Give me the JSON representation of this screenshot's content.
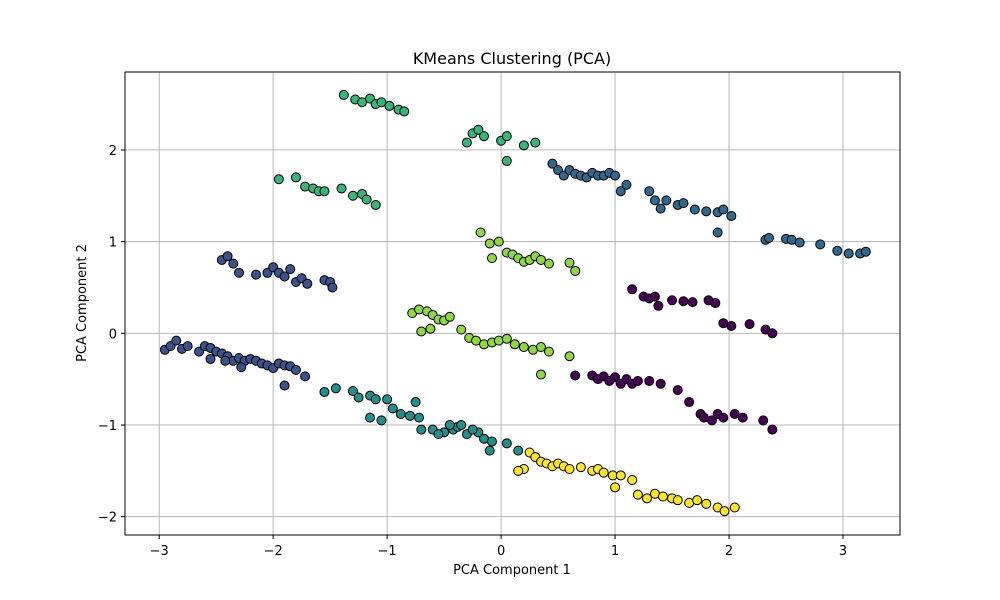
{
  "chart_data": {
    "type": "scatter",
    "title": "KMeans Clustering (PCA)",
    "xlabel": "PCA Component 1",
    "ylabel": "PCA Component 2",
    "xlim": [
      -3.3,
      3.5
    ],
    "ylim": [
      -2.2,
      2.85
    ],
    "xticks": [
      -3,
      -2,
      -1,
      0,
      1,
      2,
      3
    ],
    "yticks": [
      -2,
      -1,
      0,
      1,
      2
    ],
    "xtick_labels": [
      "−3",
      "−2",
      "−1",
      "0",
      "1",
      "2",
      "3"
    ],
    "ytick_labels": [
      "−2",
      "−1",
      "0",
      "1",
      "2"
    ],
    "grid": true,
    "series": [
      {
        "cluster": 0,
        "color": "#440154",
        "points": [
          [
            1.15,
            0.48
          ],
          [
            1.25,
            0.4
          ],
          [
            1.3,
            0.38
          ],
          [
            1.35,
            0.4
          ],
          [
            1.38,
            0.3
          ],
          [
            1.5,
            0.36
          ],
          [
            1.6,
            0.35
          ],
          [
            1.68,
            0.34
          ],
          [
            1.82,
            0.36
          ],
          [
            1.88,
            0.33
          ],
          [
            1.95,
            0.11
          ],
          [
            2.02,
            0.08
          ],
          [
            2.18,
            0.1
          ],
          [
            2.32,
            0.04
          ],
          [
            2.38,
            0.0
          ],
          [
            0.65,
            -0.46
          ],
          [
            0.8,
            -0.46
          ],
          [
            0.85,
            -0.5
          ],
          [
            0.9,
            -0.47
          ],
          [
            0.95,
            -0.52
          ],
          [
            1.0,
            -0.48
          ],
          [
            1.05,
            -0.55
          ],
          [
            1.1,
            -0.5
          ],
          [
            1.15,
            -0.55
          ],
          [
            1.2,
            -0.52
          ],
          [
            1.3,
            -0.52
          ],
          [
            1.4,
            -0.55
          ],
          [
            1.55,
            -0.62
          ],
          [
            1.65,
            -0.75
          ],
          [
            1.75,
            -0.88
          ],
          [
            1.78,
            -0.92
          ],
          [
            1.85,
            -0.95
          ],
          [
            1.9,
            -0.88
          ],
          [
            1.95,
            -0.92
          ],
          [
            2.05,
            -0.88
          ],
          [
            2.12,
            -0.92
          ],
          [
            2.3,
            -0.95
          ],
          [
            2.38,
            -1.05
          ]
        ]
      },
      {
        "cluster": 1,
        "color": "#3b528b",
        "points": [
          [
            -2.95,
            -0.18
          ],
          [
            -2.9,
            -0.14
          ],
          [
            -2.85,
            -0.08
          ],
          [
            -2.8,
            -0.17
          ],
          [
            -2.75,
            -0.14
          ],
          [
            -2.65,
            -0.2
          ],
          [
            -2.6,
            -0.14
          ],
          [
            -2.55,
            -0.16
          ],
          [
            -2.5,
            -0.2
          ],
          [
            -2.45,
            -0.22
          ],
          [
            -2.4,
            -0.25
          ],
          [
            -2.35,
            -0.3
          ],
          [
            -2.3,
            -0.27
          ],
          [
            -2.25,
            -0.3
          ],
          [
            -2.2,
            -0.28
          ],
          [
            -2.15,
            -0.3
          ],
          [
            -2.1,
            -0.33
          ],
          [
            -2.05,
            -0.35
          ],
          [
            -2.0,
            -0.38
          ],
          [
            -1.95,
            -0.33
          ],
          [
            -1.9,
            -0.35
          ],
          [
            -1.85,
            -0.36
          ],
          [
            -1.8,
            -0.4
          ],
          [
            -1.72,
            -0.47
          ],
          [
            -1.9,
            -0.57
          ],
          [
            -2.28,
            -0.37
          ],
          [
            -2.42,
            -0.3
          ],
          [
            -2.55,
            -0.28
          ],
          [
            -2.45,
            0.8
          ],
          [
            -2.4,
            0.84
          ],
          [
            -2.35,
            0.76
          ],
          [
            -2.3,
            0.66
          ],
          [
            -2.15,
            0.64
          ],
          [
            -2.05,
            0.66
          ],
          [
            -2.0,
            0.72
          ],
          [
            -1.95,
            0.66
          ],
          [
            -1.9,
            0.62
          ],
          [
            -1.85,
            0.7
          ],
          [
            -1.8,
            0.56
          ],
          [
            -1.75,
            0.6
          ],
          [
            -1.7,
            0.54
          ],
          [
            -1.55,
            0.58
          ],
          [
            -1.5,
            0.56
          ],
          [
            -1.48,
            0.5
          ]
        ]
      },
      {
        "cluster": 2,
        "color": "#31688e",
        "points": [
          [
            0.45,
            1.85
          ],
          [
            0.5,
            1.78
          ],
          [
            0.55,
            1.72
          ],
          [
            0.6,
            1.78
          ],
          [
            0.65,
            1.74
          ],
          [
            0.7,
            1.72
          ],
          [
            0.75,
            1.7
          ],
          [
            0.8,
            1.75
          ],
          [
            0.85,
            1.72
          ],
          [
            0.9,
            1.72
          ],
          [
            0.95,
            1.75
          ],
          [
            1.0,
            1.72
          ],
          [
            1.05,
            1.55
          ],
          [
            1.1,
            1.62
          ],
          [
            1.3,
            1.55
          ],
          [
            1.35,
            1.45
          ],
          [
            1.4,
            1.36
          ],
          [
            1.45,
            1.45
          ],
          [
            1.55,
            1.4
          ],
          [
            1.6,
            1.42
          ],
          [
            1.7,
            1.35
          ],
          [
            1.8,
            1.33
          ],
          [
            1.9,
            1.32
          ],
          [
            1.95,
            1.35
          ],
          [
            2.02,
            1.28
          ],
          [
            1.9,
            1.1
          ],
          [
            2.32,
            1.02
          ],
          [
            2.35,
            1.04
          ],
          [
            2.5,
            1.03
          ],
          [
            2.55,
            1.02
          ],
          [
            2.62,
            0.99
          ],
          [
            2.8,
            0.97
          ],
          [
            2.95,
            0.9
          ],
          [
            3.05,
            0.87
          ],
          [
            3.15,
            0.87
          ],
          [
            3.2,
            0.89
          ]
        ]
      },
      {
        "cluster": 3,
        "color": "#21908d",
        "points": [
          [
            -1.55,
            -0.64
          ],
          [
            -1.45,
            -0.6
          ],
          [
            -1.3,
            -0.63
          ],
          [
            -1.25,
            -0.7
          ],
          [
            -1.15,
            -0.68
          ],
          [
            -1.1,
            -0.72
          ],
          [
            -1.0,
            -0.72
          ],
          [
            -0.95,
            -0.82
          ],
          [
            -0.88,
            -0.88
          ],
          [
            -0.8,
            -0.9
          ],
          [
            -0.75,
            -0.75
          ],
          [
            -0.72,
            -0.92
          ],
          [
            -0.7,
            -1.05
          ],
          [
            -0.6,
            -1.05
          ],
          [
            -0.5,
            -1.08
          ],
          [
            -0.42,
            -1.05
          ],
          [
            -0.38,
            -1.02
          ],
          [
            -0.3,
            -1.1
          ],
          [
            -0.2,
            -1.08
          ],
          [
            -0.15,
            -1.15
          ],
          [
            -0.08,
            -1.18
          ],
          [
            0.05,
            -1.2
          ],
          [
            0.15,
            -1.28
          ],
          [
            -0.1,
            -1.28
          ],
          [
            -0.35,
            -1.0
          ],
          [
            -0.55,
            -1.1
          ],
          [
            -0.45,
            -1.0
          ],
          [
            -0.25,
            -1.05
          ],
          [
            -1.15,
            -0.92
          ],
          [
            -1.05,
            -0.95
          ]
        ]
      },
      {
        "cluster": 4,
        "color": "#35b779",
        "points": [
          [
            -1.38,
            2.6
          ],
          [
            -1.28,
            2.55
          ],
          [
            -1.22,
            2.52
          ],
          [
            -1.15,
            2.56
          ],
          [
            -1.1,
            2.5
          ],
          [
            -1.05,
            2.52
          ],
          [
            -0.98,
            2.48
          ],
          [
            -0.9,
            2.44
          ],
          [
            -0.85,
            2.42
          ],
          [
            -0.3,
            2.08
          ],
          [
            -0.25,
            2.18
          ],
          [
            -0.2,
            2.22
          ],
          [
            -0.15,
            2.15
          ],
          [
            0.0,
            2.1
          ],
          [
            0.05,
            2.15
          ],
          [
            0.2,
            2.05
          ],
          [
            0.3,
            2.08
          ],
          [
            0.05,
            1.88
          ],
          [
            -1.95,
            1.68
          ],
          [
            -1.8,
            1.7
          ],
          [
            -1.72,
            1.6
          ],
          [
            -1.65,
            1.58
          ],
          [
            -1.6,
            1.55
          ],
          [
            -1.55,
            1.55
          ],
          [
            -1.4,
            1.58
          ],
          [
            -1.3,
            1.5
          ],
          [
            -1.22,
            1.52
          ],
          [
            -1.18,
            1.46
          ],
          [
            -1.1,
            1.4
          ]
        ]
      },
      {
        "cluster": 5,
        "color": "#90d743",
        "points": [
          [
            -0.78,
            0.22
          ],
          [
            -0.72,
            0.26
          ],
          [
            -0.65,
            0.24
          ],
          [
            -0.6,
            0.2
          ],
          [
            -0.55,
            0.15
          ],
          [
            -0.5,
            0.14
          ],
          [
            -0.45,
            0.18
          ],
          [
            -0.7,
            0.02
          ],
          [
            -0.62,
            0.05
          ],
          [
            -0.35,
            0.04
          ],
          [
            -0.28,
            -0.05
          ],
          [
            -0.22,
            -0.08
          ],
          [
            -0.15,
            -0.12
          ],
          [
            -0.08,
            -0.1
          ],
          [
            -0.02,
            -0.08
          ],
          [
            0.05,
            -0.06
          ],
          [
            0.12,
            -0.12
          ],
          [
            0.2,
            -0.15
          ],
          [
            0.28,
            -0.18
          ],
          [
            0.35,
            -0.15
          ],
          [
            0.42,
            -0.2
          ],
          [
            0.6,
            -0.25
          ],
          [
            0.35,
            -0.45
          ],
          [
            -0.18,
            1.1
          ],
          [
            -0.1,
            0.98
          ],
          [
            -0.02,
            1.0
          ],
          [
            0.05,
            0.88
          ],
          [
            0.1,
            0.86
          ],
          [
            0.15,
            0.82
          ],
          [
            0.2,
            0.78
          ],
          [
            0.25,
            0.8
          ],
          [
            0.3,
            0.84
          ],
          [
            0.35,
            0.8
          ],
          [
            0.42,
            0.76
          ],
          [
            0.6,
            0.77
          ],
          [
            0.65,
            0.68
          ],
          [
            -0.08,
            0.82
          ]
        ]
      },
      {
        "cluster": 6,
        "color": "#fde725",
        "points": [
          [
            0.25,
            -1.3
          ],
          [
            0.3,
            -1.35
          ],
          [
            0.35,
            -1.4
          ],
          [
            0.4,
            -1.42
          ],
          [
            0.45,
            -1.45
          ],
          [
            0.5,
            -1.42
          ],
          [
            0.55,
            -1.45
          ],
          [
            0.6,
            -1.48
          ],
          [
            0.7,
            -1.46
          ],
          [
            0.8,
            -1.5
          ],
          [
            0.85,
            -1.48
          ],
          [
            0.9,
            -1.52
          ],
          [
            0.98,
            -1.55
          ],
          [
            1.05,
            -1.55
          ],
          [
            1.15,
            -1.6
          ],
          [
            1.2,
            -1.76
          ],
          [
            1.28,
            -1.8
          ],
          [
            1.35,
            -1.75
          ],
          [
            1.42,
            -1.78
          ],
          [
            1.5,
            -1.8
          ],
          [
            1.55,
            -1.82
          ],
          [
            1.65,
            -1.85
          ],
          [
            1.72,
            -1.82
          ],
          [
            1.8,
            -1.86
          ],
          [
            1.9,
            -1.9
          ],
          [
            1.96,
            -1.94
          ],
          [
            2.05,
            -1.9
          ],
          [
            0.2,
            -1.48
          ],
          [
            0.15,
            -1.5
          ],
          [
            1.0,
            -1.68
          ]
        ]
      }
    ]
  }
}
